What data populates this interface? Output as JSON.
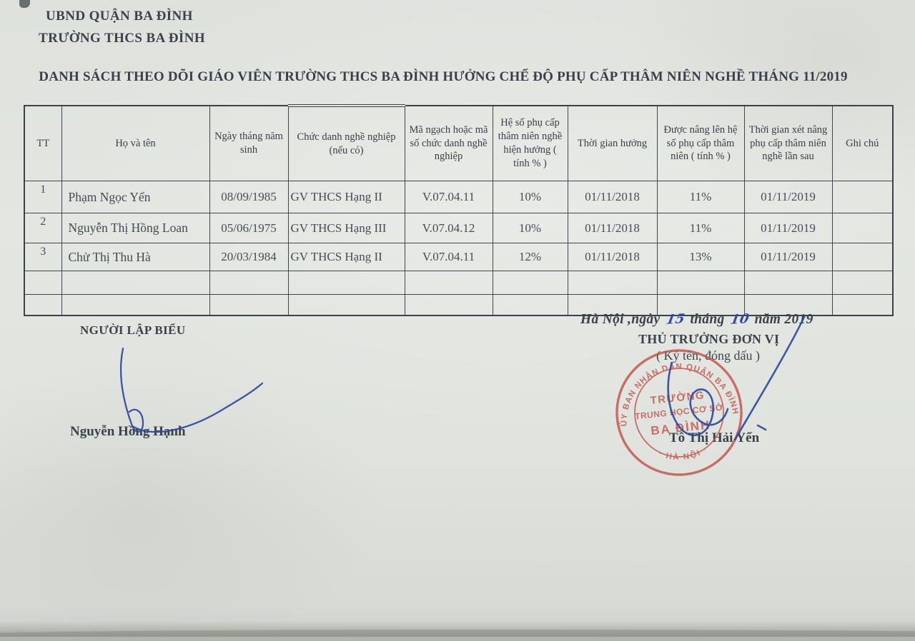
{
  "org": {
    "line1": "UBND QUẬN BA ĐÌNH",
    "line2": "TRƯỜNG THCS BA ĐÌNH"
  },
  "title": "DANH SÁCH  THEO DÕI GIÁO VIÊN TRƯỜNG THCS BA ĐÌNH HƯỞNG CHẾ ĐỘ PHỤ CẤP THÂM NIÊN NGHỀ  THÁNG 11/2019",
  "table": {
    "headers": [
      "TT",
      "Họ và tên",
      "Ngày tháng năm sinh",
      "Chức danh nghề nghiệp (nếu có)",
      "Mã ngạch hoặc mã số chức danh nghề nghiệp",
      "Hệ số phụ cấp thâm niên nghề hiện hưởng ( tính % )",
      "Thời gian hưởng",
      "Được nâng lên hệ số phụ cấp thâm niên ( tính % )",
      "Thời gian xét nâng phụ cấp thâm niên nghề lần sau",
      "Ghi chú"
    ],
    "rows": [
      [
        "1",
        "Phạm Ngọc Yến",
        "08/09/1985",
        "GV THCS Hạng II",
        "V.07.04.11",
        "10%",
        "01/11/2018",
        "11%",
        "01/11/2019",
        ""
      ],
      [
        "2",
        "Nguyễn Thị Hồng Loan",
        "05/06/1975",
        "GV THCS Hạng III",
        "V.07.04.12",
        "10%",
        "01/11/2018",
        "11%",
        "01/11/2019",
        ""
      ],
      [
        "3",
        "Chử Thị Thu Hà",
        "20/03/1984",
        "GV THCS Hạng II",
        "V.07.04.11",
        "12%",
        "01/11/2018",
        "13%",
        "01/11/2019",
        ""
      ],
      [
        "",
        "",
        "",
        "",
        "",
        "",
        "",
        "",
        "",
        ""
      ],
      [
        "",
        "",
        "",
        "",
        "",
        "",
        "",
        "",
        "",
        ""
      ]
    ]
  },
  "footer": {
    "date": {
      "prefix": "Hà Nội ,ngày",
      "day": "15",
      "thang": "tháng",
      "month": "10",
      "suffix": "năm 2019"
    },
    "left": {
      "title": "NGƯỜI LẬP BIỂU",
      "name": "Nguyễn Hồng Hạnh"
    },
    "right": {
      "title": "THỦ TRƯỞNG ĐƠN VỊ",
      "subtitle": "( Ký tên, đóng dấu )",
      "name": "Tô Thị Hải Yến"
    },
    "stamp": {
      "arc_top": "ỦY BAN NHÂN DÂN QUẬN BA ĐÌNH",
      "arc_bottom": "· HÀ NỘI ·",
      "line1": "TRƯỜNG",
      "line2": "TRUNG HỌC CƠ SỞ",
      "line3": "BA ĐÌNH"
    }
  },
  "colors": {
    "paper": "#e0e3de",
    "ink": "#3c4248",
    "table_line": "#41464d",
    "stamp_red": "#c4534b",
    "pen_blue": "#2e4a9e"
  }
}
